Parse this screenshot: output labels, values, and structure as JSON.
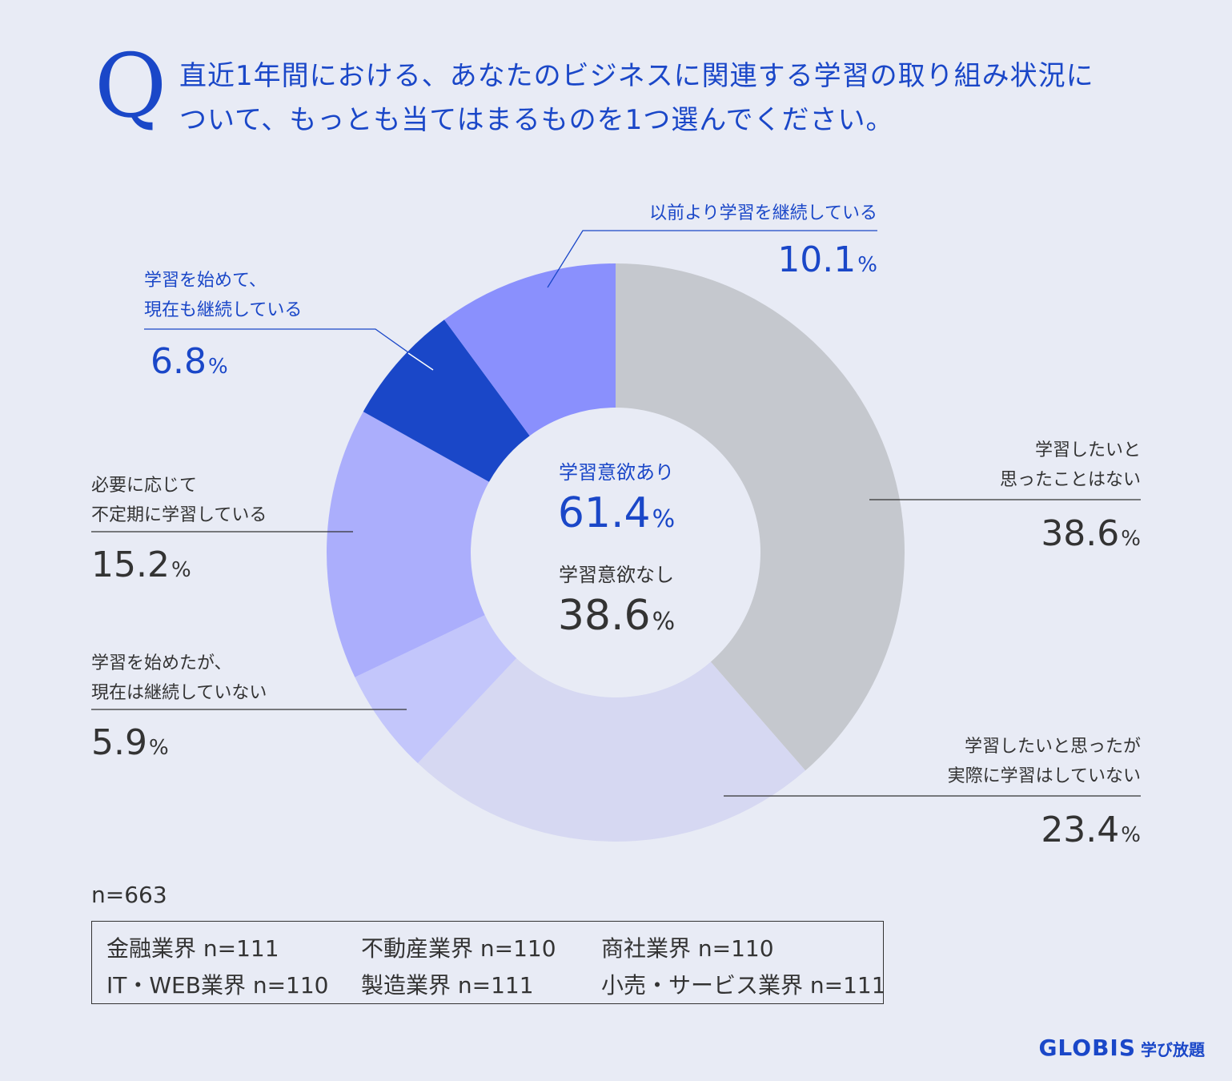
{
  "question": {
    "mark": "Q",
    "line1": "直近1年間における、あなたのビジネスに関連する学習の取り組み状況に",
    "line2": "ついて、もっとも当てはまるものを1つ選んでください。"
  },
  "chart_data": {
    "type": "pie",
    "donut": true,
    "unit": "%",
    "slices": [
      {
        "label_lines": [
          "学習したいと",
          "思ったことはない"
        ],
        "value": 38.6,
        "value_text": "38.6",
        "color": "#c5c8ce",
        "label_color": "#333333"
      },
      {
        "label_lines": [
          "学習したいと思ったが",
          "実際に学習はしていない"
        ],
        "value": 23.4,
        "value_text": "23.4",
        "color": "#d6d8f2",
        "label_color": "#333333"
      },
      {
        "label_lines": [
          "学習を始めたが、",
          "現在は継続していない"
        ],
        "value": 5.9,
        "value_text": "5.9",
        "color": "#c3c6fb",
        "label_color": "#333333"
      },
      {
        "label_lines": [
          "必要に応じて",
          "不定期に学習している"
        ],
        "value": 15.2,
        "value_text": "15.2",
        "color": "#abaefc",
        "label_color": "#333333"
      },
      {
        "label_lines": [
          "学習を始めて、",
          "現在も継続している"
        ],
        "value": 6.8,
        "value_text": "6.8",
        "color": "#1a47c8",
        "label_color": "#1a47c8"
      },
      {
        "label_lines": [
          "以前より学習を継続している"
        ],
        "value": 10.1,
        "value_text": "10.1",
        "color": "#8a90fd",
        "label_color": "#1a47c8"
      }
    ],
    "center": {
      "motivated_label": "学習意欲あり",
      "motivated_value": "61.4",
      "unmotivated_label": "学習意欲なし",
      "unmotivated_value": "38.6"
    }
  },
  "sample": {
    "total": "n=663",
    "groups": [
      "金融業界 n=111",
      "不動産業界 n=110",
      "商社業界 n=110",
      "IT・WEB業界 n=110",
      "製造業界 n=111",
      "小売・サービス業界 n=111"
    ]
  },
  "logo": {
    "main": "GLOBIS",
    "sub": "学び放題"
  }
}
